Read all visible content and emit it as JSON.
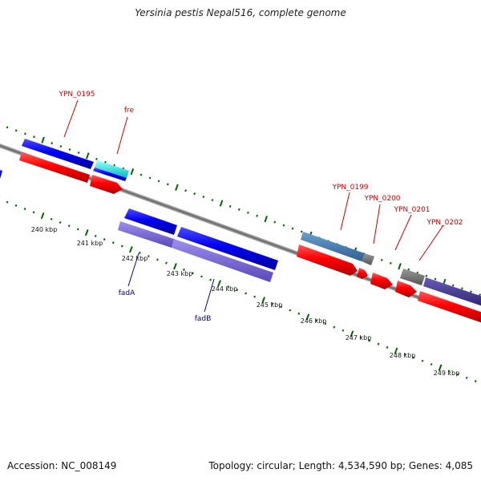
{
  "title": "Yersinia pestis Nepal516, complete genome",
  "footer": {
    "accession": "Accession: NC_008149",
    "summary": "Topology: circular; Length: 4,534,590 bp; Genes: 4,085"
  },
  "scale_labels": [
    "240 kbp",
    "241 kbp",
    "242 kbp",
    "243 kbp",
    "244 kbp",
    "245 kbp",
    "246 kbp",
    "247 kbp",
    "248 kbp",
    "249 kbp"
  ],
  "gene_labels": [
    "YPN_0195",
    "fre",
    "YPN_0199",
    "YPN_0200",
    "YPN_0201",
    "YPN_0202",
    "fadA",
    "fadB"
  ],
  "colors": {
    "backbone": "#7f7f7f",
    "cds_forward": "#0000e6",
    "cds_reverse": "#ff0000",
    "cds_cyan": "#19e6e6",
    "cds_steel": "#4a7fb5",
    "cds_lavender": "#7b68d8",
    "cds_indigo": "#4b3f96",
    "cds_gray": "#707070",
    "tick": "#006600",
    "label_red": "#cc0000",
    "label_blue": "#000099"
  }
}
